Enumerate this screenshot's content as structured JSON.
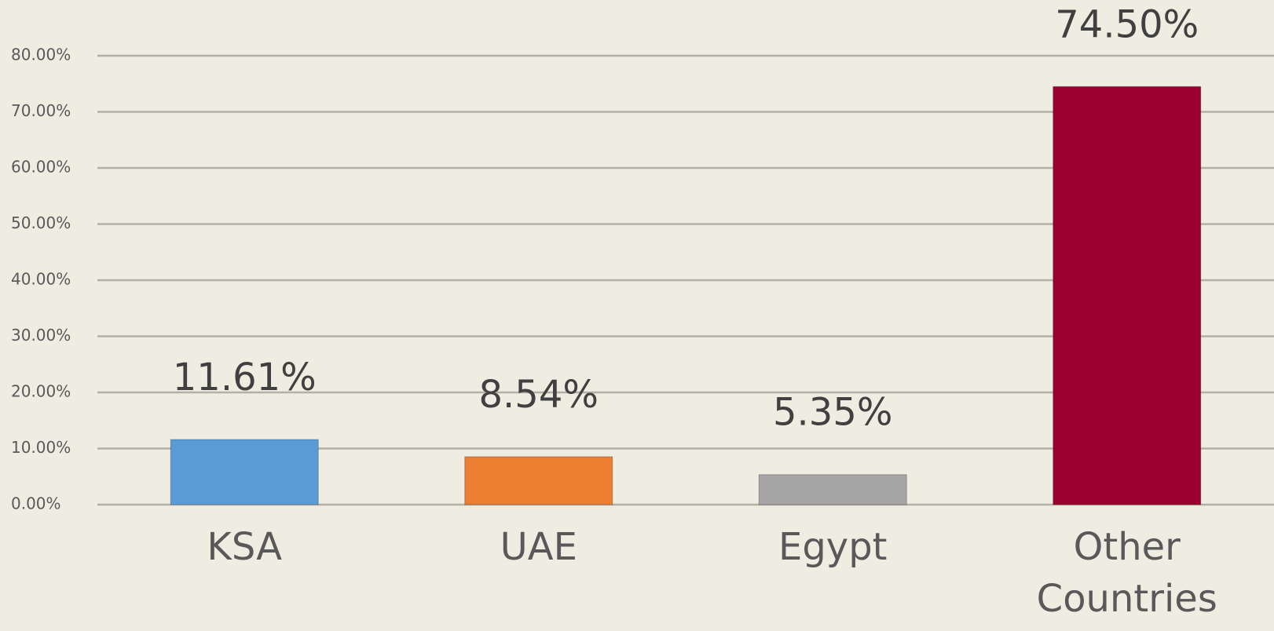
{
  "chart_data": {
    "type": "bar",
    "categories": [
      "KSA",
      "UAE",
      "Egypt",
      "Other Countries"
    ],
    "values": [
      11.61,
      8.54,
      5.35,
      74.5
    ],
    "value_labels": [
      "11.61%",
      "8.54%",
      "5.35%",
      "74.50%"
    ],
    "colors": [
      "#5b9bd5",
      "#ed7d31",
      "#a5a5a5",
      "#9b0030"
    ],
    "ylim": [
      0,
      80
    ],
    "yticks": [
      {
        "value": 0,
        "label": "0.00%"
      },
      {
        "value": 10,
        "label": "10.00%"
      },
      {
        "value": 20,
        "label": "20.00%"
      },
      {
        "value": 30,
        "label": "30.00%"
      },
      {
        "value": 40,
        "label": "40.00%"
      },
      {
        "value": 50,
        "label": "50.00%"
      },
      {
        "value": 60,
        "label": "60.00%"
      },
      {
        "value": 70,
        "label": "70.00%"
      },
      {
        "value": 80,
        "label": "80.00%"
      }
    ],
    "grid": true
  }
}
